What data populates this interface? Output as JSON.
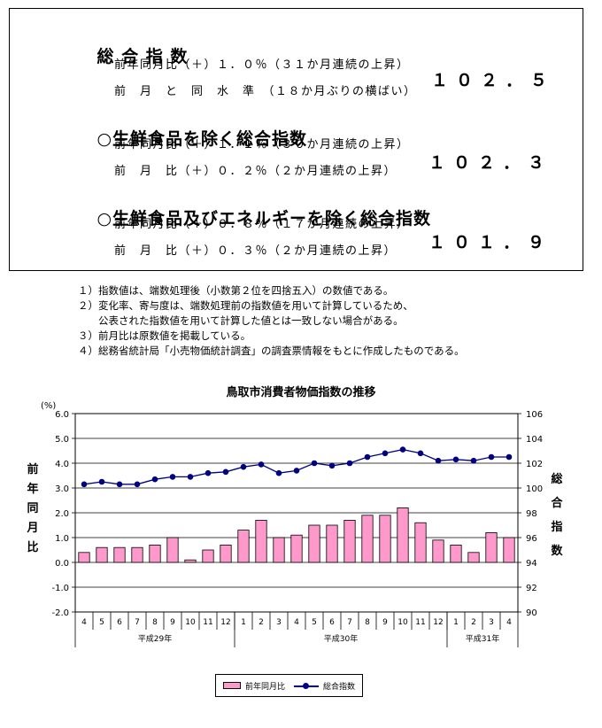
{
  "summary": {
    "rows": [
      {
        "kind": "h1",
        "label": "総 合 指 数",
        "value": "１０２．５"
      },
      {
        "kind": "sub",
        "text": "前年同月比（＋）１．０％（３１か月連続の上昇）"
      },
      {
        "kind": "sub",
        "text": "前　月　と　同　水　準　（１８か月ぶりの横ばい）"
      },
      {
        "kind": "h1",
        "label": "○生鮮食品を除く総合指数",
        "value": "１０２．３"
      },
      {
        "kind": "sub",
        "text": "前年同月比（＋）１．１％（３０か月連続の上昇）"
      },
      {
        "kind": "sub",
        "text": "前　月　比（＋）０．２％（２か月連続の上昇）"
      },
      {
        "kind": "h1",
        "label": "○生鮮食品及びエネルギーを除く総合指数",
        "value": "１０１．９"
      },
      {
        "kind": "sub",
        "text": "前年同月比（＋）０．８％（１７か月連続の上昇）"
      },
      {
        "kind": "sub",
        "text": "前　月　比（＋）０．３％（２か月連続の上昇）"
      }
    ]
  },
  "notes": [
    "１）指数値は、端数処理後（小数第２位を四捨五入）の数値である。",
    "２）変化率、寄与度は、端数処理前の指数値を用いて計算しているため、",
    "　　公表された指数値を用いて計算した値とは一致しない場合がある。",
    "３）前月比は原数値を掲載している。",
    "４）総務省統計局「小売物価統計調査」の調査票情報をもとに作成したものである。"
  ],
  "chart_data": {
    "type": "bar",
    "title": "鳥取市消費者物価指数の推移",
    "left_unit": "(%)",
    "left_axis_label": "前年同月比",
    "right_axis_label": "総合指数",
    "categories": [
      "4",
      "5",
      "6",
      "7",
      "8",
      "9",
      "10",
      "11",
      "12",
      "1",
      "2",
      "3",
      "4",
      "5",
      "6",
      "7",
      "8",
      "9",
      "10",
      "11",
      "12",
      "1",
      "2",
      "3",
      "4"
    ],
    "year_groups": [
      {
        "label": "平成29年",
        "count": 9
      },
      {
        "label": "平成30年",
        "count": 12
      },
      {
        "label": "平成31年",
        "count": 4
      }
    ],
    "ylim_left": [
      -2.0,
      6.0
    ],
    "yticks_left": [
      "-2.0",
      "-1.0",
      "0.0",
      "1.0",
      "2.0",
      "3.0",
      "4.0",
      "5.0",
      "6.0"
    ],
    "ylim_right": [
      90,
      106
    ],
    "yticks_right": [
      "90",
      "92",
      "94",
      "96",
      "98",
      "100",
      "102",
      "104",
      "106"
    ],
    "series": [
      {
        "name": "前年同月比",
        "type": "bar",
        "axis": "left",
        "color": "#ff99cc",
        "values": [
          0.4,
          0.6,
          0.6,
          0.6,
          0.7,
          1.0,
          0.1,
          0.5,
          0.7,
          1.3,
          1.7,
          1.0,
          1.1,
          1.5,
          1.5,
          1.7,
          1.9,
          1.9,
          2.2,
          1.6,
          0.9,
          0.7,
          0.4,
          1.2,
          1.0
        ]
      },
      {
        "name": "総合指数",
        "type": "line",
        "axis": "right",
        "color": "#000080",
        "values": [
          100.3,
          100.5,
          100.3,
          100.3,
          100.7,
          100.9,
          100.9,
          101.2,
          101.3,
          101.7,
          101.9,
          101.2,
          101.4,
          102.0,
          101.8,
          102.0,
          102.5,
          102.8,
          103.1,
          102.8,
          102.2,
          102.3,
          102.2,
          102.5,
          102.5
        ]
      }
    ],
    "grid": "horizontal",
    "legend_position": "bottom"
  }
}
